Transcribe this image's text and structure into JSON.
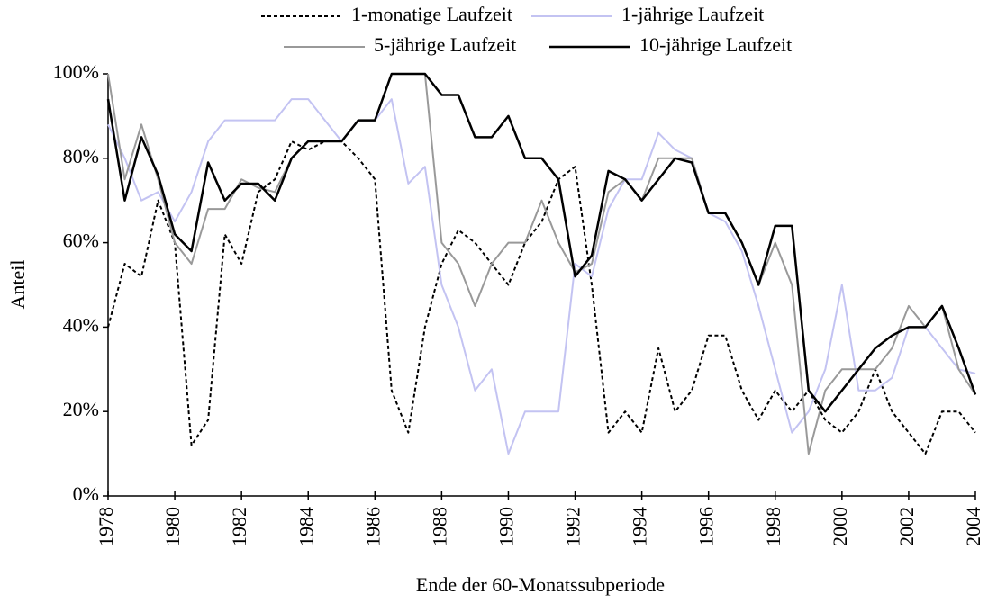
{
  "chart_data": {
    "type": "line",
    "xlabel": "Ende der 60-Monatssubperiode",
    "ylabel": "Anteil",
    "x": [
      1978,
      1978.5,
      1979,
      1979.5,
      1980,
      1980.5,
      1981,
      1981.5,
      1982,
      1982.5,
      1983,
      1983.5,
      1984,
      1984.5,
      1985,
      1985.5,
      1986,
      1986.5,
      1987,
      1987.5,
      1988,
      1988.5,
      1989,
      1989.5,
      1990,
      1990.5,
      1991,
      1991.5,
      1992,
      1992.5,
      1993,
      1993.5,
      1994,
      1994.5,
      1995,
      1995.5,
      1996,
      1996.5,
      1997,
      1997.5,
      1998,
      1998.5,
      1999,
      1999.5,
      2000,
      2000.5,
      2001,
      2001.5,
      2002,
      2002.5,
      2003,
      2003.5,
      2004
    ],
    "series": [
      {
        "name": "1-monatige Laufzeit",
        "color": "#000000",
        "dash": true,
        "values": [
          40,
          55,
          52,
          70,
          60,
          12,
          18,
          62,
          55,
          72,
          75,
          84,
          82,
          84,
          84,
          80,
          75,
          25,
          15,
          40,
          55,
          63,
          60,
          55,
          50,
          60,
          65,
          75,
          78,
          50,
          15,
          20,
          15,
          35,
          20,
          25,
          38,
          38,
          25,
          18,
          25,
          20,
          25,
          18,
          15,
          20,
          30,
          20,
          15,
          10,
          20,
          20,
          15
        ]
      },
      {
        "name": "1-jährige Laufzeit",
        "color": "#c3c3f2",
        "values": [
          88,
          80,
          70,
          72,
          65,
          72,
          84,
          89,
          89,
          89,
          89,
          94,
          94,
          89,
          84,
          89,
          89,
          94,
          74,
          78,
          50,
          40,
          25,
          30,
          10,
          20,
          20,
          20,
          55,
          52,
          68,
          75,
          75,
          86,
          82,
          80,
          67,
          65,
          58,
          45,
          30,
          15,
          20,
          30,
          50,
          25,
          25,
          28,
          40,
          40,
          35,
          30,
          29
        ]
      },
      {
        "name": "5-jährige Laufzeit",
        "color": "#999999",
        "values": [
          100,
          75,
          88,
          75,
          60,
          55,
          68,
          68,
          75,
          73,
          72,
          80,
          84,
          84,
          84,
          89,
          89,
          100,
          100,
          100,
          60,
          55,
          45,
          55,
          60,
          60,
          70,
          60,
          53,
          55,
          72,
          75,
          70,
          80,
          80,
          80,
          67,
          67,
          60,
          50,
          60,
          50,
          10,
          25,
          30,
          30,
          30,
          35,
          45,
          40,
          45,
          30,
          24
        ]
      },
      {
        "name": "10-jährige Laufzeit",
        "color": "#000000",
        "values": [
          94,
          70,
          85,
          76,
          62,
          58,
          79,
          70,
          74,
          74,
          70,
          80,
          84,
          84,
          84,
          89,
          89,
          100,
          100,
          100,
          95,
          95,
          85,
          85,
          90,
          80,
          80,
          75,
          52,
          57,
          77,
          75,
          70,
          75,
          80,
          79,
          67,
          67,
          60,
          50,
          64,
          64,
          25,
          20,
          25,
          30,
          35,
          38,
          40,
          40,
          45,
          35,
          24
        ]
      }
    ],
    "xlim": [
      1978,
      2004
    ],
    "xticks": [
      1978,
      1980,
      1982,
      1984,
      1986,
      1988,
      1990,
      1992,
      1994,
      1996,
      1998,
      2000,
      2002,
      2004
    ],
    "ylim": [
      0,
      100
    ],
    "yticks": [
      {
        "value": 0,
        "label": "0%"
      },
      {
        "value": 20,
        "label": "20%"
      },
      {
        "value": 40,
        "label": "40%"
      },
      {
        "value": 60,
        "label": "60%"
      },
      {
        "value": 80,
        "label": "80%"
      },
      {
        "value": 100,
        "label": "100%"
      }
    ],
    "grid": false,
    "legend": "top"
  }
}
